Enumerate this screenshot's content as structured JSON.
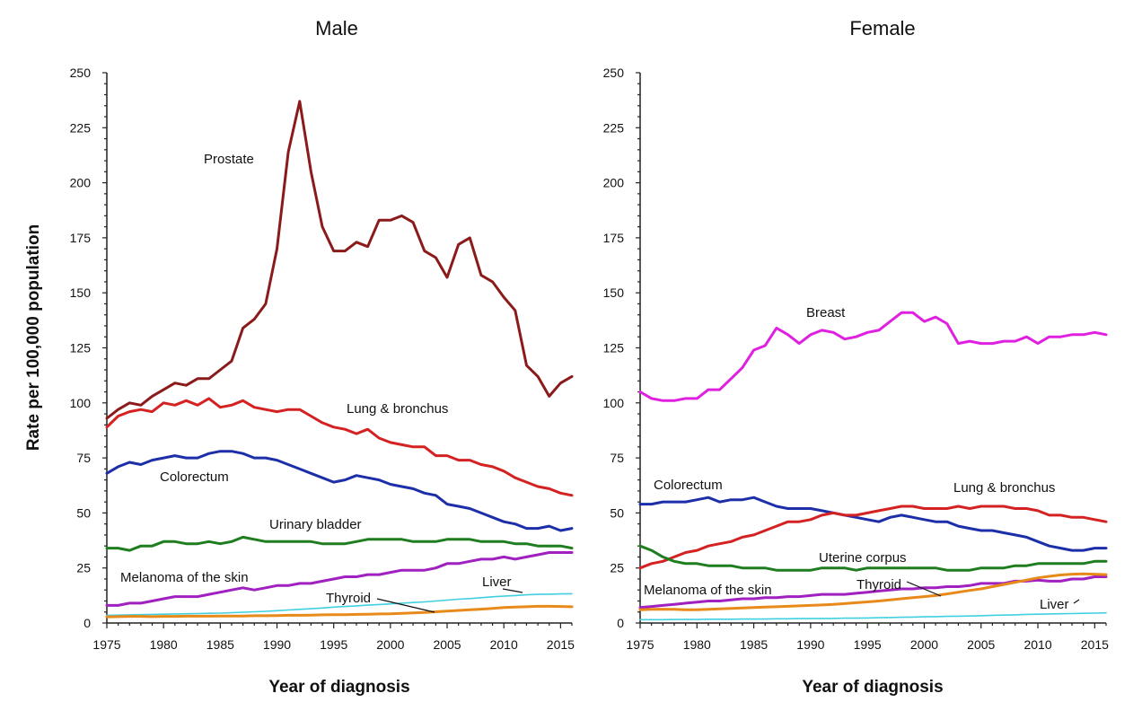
{
  "ylabel": "Rate per 100,000 population",
  "chart_data": [
    {
      "type": "line",
      "title": "Male",
      "xlabel": "Year of diagnosis",
      "ylabel": "Rate per 100,000 population",
      "xlim": [
        1975,
        2016
      ],
      "ylim": [
        0,
        250
      ],
      "xticks": [
        1975,
        1980,
        1985,
        1990,
        1995,
        2000,
        2005,
        2010,
        2015
      ],
      "yticks": [
        0,
        25,
        50,
        75,
        100,
        125,
        150,
        175,
        200,
        225,
        250
      ],
      "x": [
        1975,
        1976,
        1977,
        1978,
        1979,
        1980,
        1981,
        1982,
        1983,
        1984,
        1985,
        1986,
        1987,
        1988,
        1989,
        1990,
        1991,
        1992,
        1993,
        1994,
        1995,
        1996,
        1997,
        1998,
        1999,
        2000,
        2001,
        2002,
        2003,
        2004,
        2005,
        2006,
        2007,
        2008,
        2009,
        2010,
        2011,
        2012,
        2013,
        2014,
        2015,
        2016
      ],
      "series": [
        {
          "name": "Prostate",
          "color": "#8b1a1a",
          "values": [
            93,
            97,
            100,
            99,
            103,
            106,
            109,
            108,
            111,
            111,
            115,
            119,
            134,
            138,
            145,
            170,
            214,
            237,
            205,
            180,
            169,
            169,
            173,
            171,
            183,
            183,
            185,
            182,
            169,
            166,
            157,
            172,
            175,
            158,
            155,
            148,
            142,
            117,
            112,
            103,
            109,
            112
          ]
        },
        {
          "name": "Lung & bronchus",
          "color": "#d42222",
          "values": [
            89,
            94,
            96,
            97,
            96,
            100,
            99,
            101,
            99,
            102,
            98,
            99,
            101,
            98,
            97,
            96,
            97,
            97,
            94,
            91,
            89,
            88,
            86,
            88,
            84,
            82,
            81,
            80,
            80,
            76,
            76,
            74,
            74,
            72,
            71,
            69,
            66,
            64,
            62,
            61,
            59,
            58
          ]
        },
        {
          "name": "Colorectum",
          "color": "#1c2fa8",
          "values": [
            68,
            71,
            73,
            72,
            74,
            75,
            76,
            75,
            75,
            77,
            78,
            78,
            77,
            75,
            75,
            74,
            72,
            70,
            68,
            66,
            64,
            65,
            67,
            66,
            65,
            63,
            62,
            61,
            59,
            58,
            54,
            53,
            52,
            50,
            48,
            46,
            45,
            43,
            43,
            44,
            42,
            43
          ]
        },
        {
          "name": "Urinary bladder",
          "color": "#1e7d1e",
          "values": [
            34,
            34,
            33,
            35,
            35,
            37,
            37,
            36,
            36,
            37,
            36,
            37,
            39,
            38,
            37,
            37,
            37,
            37,
            37,
            36,
            36,
            36,
            37,
            38,
            38,
            38,
            38,
            37,
            37,
            37,
            38,
            38,
            38,
            37,
            37,
            37,
            36,
            36,
            35,
            35,
            35,
            34
          ]
        },
        {
          "name": "Melanoma of the skin",
          "color": "#a020c0",
          "values": [
            8,
            8,
            9,
            9,
            10,
            11,
            12,
            12,
            12,
            13,
            14,
            15,
            16,
            15,
            16,
            17,
            17,
            18,
            18,
            19,
            20,
            21,
            21,
            22,
            22,
            23,
            24,
            24,
            24,
            25,
            27,
            27,
            28,
            29,
            29,
            30,
            29,
            30,
            31,
            32,
            32,
            32
          ]
        },
        {
          "name": "Liver",
          "color": "#40d0e0",
          "values": [
            3.5,
            3.6,
            3.7,
            3.8,
            3.9,
            4.0,
            4.1,
            4.2,
            4.3,
            4.4,
            4.5,
            4.7,
            4.9,
            5.1,
            5.3,
            5.6,
            5.9,
            6.2,
            6.5,
            6.8,
            7.2,
            7.5,
            7.8,
            8.1,
            8.4,
            8.7,
            9.0,
            9.3,
            9.6,
            10.0,
            10.4,
            10.8,
            11.1,
            11.5,
            11.9,
            12.2,
            12.5,
            12.8,
            13.0,
            13.1,
            13.2,
            13.3
          ]
        },
        {
          "name": "Thyroid",
          "color": "#e88a1a",
          "values": [
            2.8,
            2.9,
            3.0,
            3.0,
            2.9,
            3.0,
            3.0,
            3.1,
            3.1,
            3.1,
            3.2,
            3.2,
            3.2,
            3.3,
            3.3,
            3.4,
            3.5,
            3.5,
            3.6,
            3.7,
            3.8,
            3.8,
            3.9,
            4.0,
            4.1,
            4.2,
            4.4,
            4.6,
            4.8,
            5.1,
            5.4,
            5.7,
            6.0,
            6.3,
            6.6,
            7.0,
            7.2,
            7.4,
            7.6,
            7.6,
            7.5,
            7.4
          ]
        }
      ],
      "labels": [
        "Prostate",
        "Lung & bronchus",
        "Colorectum",
        "Urinary bladder",
        "Melanoma of the skin",
        "Liver",
        "Thyroid"
      ]
    },
    {
      "type": "line",
      "title": "Female",
      "xlabel": "Year of diagnosis",
      "ylabel": "",
      "xlim": [
        1975,
        2016
      ],
      "ylim": [
        0,
        250
      ],
      "xticks": [
        1975,
        1980,
        1985,
        1990,
        1995,
        2000,
        2005,
        2010,
        2015
      ],
      "yticks": [
        0,
        25,
        50,
        75,
        100,
        125,
        150,
        175,
        200,
        225,
        250
      ],
      "x": [
        1975,
        1976,
        1977,
        1978,
        1979,
        1980,
        1981,
        1982,
        1983,
        1984,
        1985,
        1986,
        1987,
        1988,
        1989,
        1990,
        1991,
        1992,
        1993,
        1994,
        1995,
        1996,
        1997,
        1998,
        1999,
        2000,
        2001,
        2002,
        2003,
        2004,
        2005,
        2006,
        2007,
        2008,
        2009,
        2010,
        2011,
        2012,
        2013,
        2014,
        2015,
        2016
      ],
      "series": [
        {
          "name": "Breast",
          "color": "#e020e0",
          "values": [
            105,
            102,
            101,
            101,
            102,
            102,
            106,
            106,
            111,
            116,
            124,
            126,
            134,
            131,
            127,
            131,
            133,
            132,
            129,
            130,
            132,
            133,
            137,
            141,
            141,
            137,
            139,
            136,
            127,
            128,
            127,
            127,
            128,
            128,
            130,
            127,
            130,
            130,
            131,
            131,
            132,
            131
          ]
        },
        {
          "name": "Colorectum",
          "color": "#1c2fa8",
          "values": [
            54,
            54,
            55,
            55,
            55,
            56,
            57,
            55,
            56,
            56,
            57,
            55,
            53,
            52,
            52,
            52,
            51,
            50,
            49,
            48,
            47,
            46,
            48,
            49,
            48,
            47,
            46,
            46,
            44,
            43,
            42,
            42,
            41,
            40,
            39,
            37,
            35,
            34,
            33,
            33,
            34,
            34
          ]
        },
        {
          "name": "Lung & bronchus",
          "color": "#d42222",
          "values": [
            25,
            27,
            28,
            30,
            32,
            33,
            35,
            36,
            37,
            39,
            40,
            42,
            44,
            46,
            46,
            47,
            49,
            50,
            49,
            49,
            50,
            51,
            52,
            53,
            53,
            52,
            52,
            52,
            53,
            52,
            53,
            53,
            53,
            52,
            52,
            51,
            49,
            49,
            48,
            48,
            47,
            46
          ]
        },
        {
          "name": "Uterine corpus",
          "color": "#1e7d1e",
          "values": [
            35,
            33,
            30,
            28,
            27,
            27,
            26,
            26,
            26,
            25,
            25,
            25,
            24,
            24,
            24,
            24,
            25,
            25,
            25,
            24,
            25,
            25,
            25,
            25,
            25,
            25,
            25,
            24,
            24,
            24,
            25,
            25,
            25,
            26,
            26,
            27,
            27,
            27,
            27,
            27,
            28,
            28
          ]
        },
        {
          "name": "Melanoma of the skin",
          "color": "#a020c0",
          "values": [
            7,
            7.5,
            8,
            8.5,
            9,
            9.5,
            10,
            10,
            10.5,
            11,
            11,
            11.5,
            11.5,
            12,
            12,
            12.5,
            13,
            13,
            13,
            13.5,
            14,
            14.5,
            15,
            15.5,
            15.5,
            16,
            16,
            16.5,
            16.5,
            17,
            18,
            18,
            18,
            19,
            19,
            19.5,
            19,
            19,
            20,
            20,
            21,
            21
          ]
        },
        {
          "name": "Thyroid",
          "color": "#e88a1a",
          "values": [
            6,
            6.2,
            6.3,
            6.2,
            6,
            6,
            6.2,
            6.4,
            6.6,
            6.8,
            7,
            7.2,
            7.4,
            7.6,
            7.8,
            8,
            8.2,
            8.5,
            8.8,
            9.2,
            9.6,
            10,
            10.5,
            11,
            11.5,
            12,
            12.5,
            13.2,
            14,
            14.8,
            15.5,
            16.5,
            17.5,
            18.5,
            19.5,
            20.5,
            21.2,
            21.8,
            22.2,
            22.3,
            22.2,
            22
          ]
        },
        {
          "name": "Liver",
          "color": "#40d0e0",
          "values": [
            1.5,
            1.5,
            1.5,
            1.6,
            1.6,
            1.6,
            1.7,
            1.7,
            1.7,
            1.8,
            1.8,
            1.8,
            1.9,
            1.9,
            2.0,
            2.0,
            2.1,
            2.1,
            2.2,
            2.2,
            2.3,
            2.4,
            2.5,
            2.6,
            2.7,
            2.8,
            2.9,
            3.0,
            3.1,
            3.2,
            3.3,
            3.5,
            3.6,
            3.7,
            3.9,
            4.0,
            4.1,
            4.2,
            4.3,
            4.4,
            4.5,
            4.6
          ]
        }
      ],
      "labels": [
        "Breast",
        "Colorectum",
        "Lung & bronchus",
        "Uterine corpus",
        "Melanoma of the skin",
        "Thyroid",
        "Liver"
      ]
    }
  ]
}
